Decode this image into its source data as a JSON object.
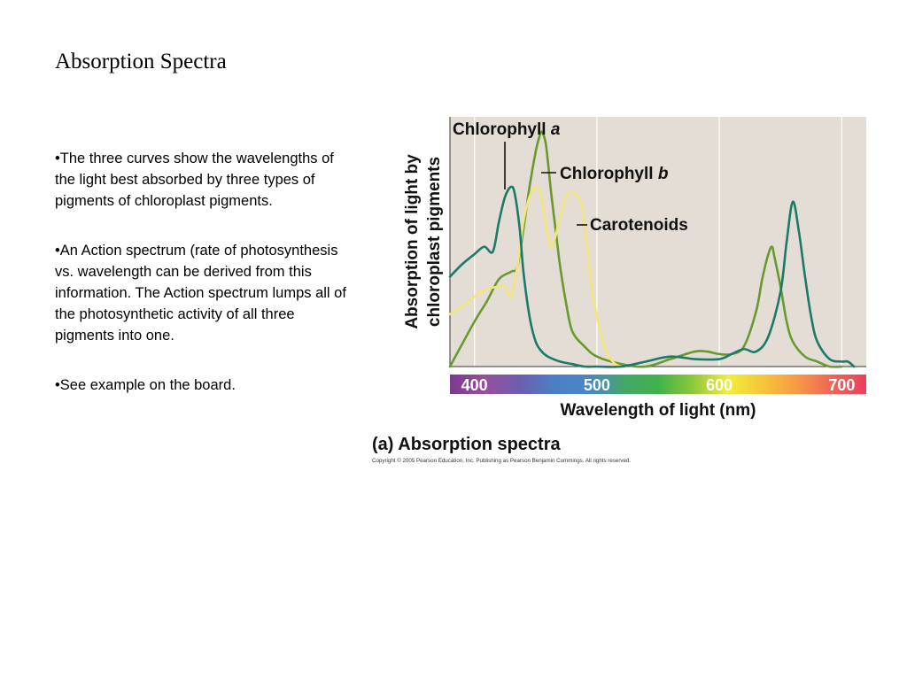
{
  "slide": {
    "title": "Absorption Spectra",
    "bullets": [
      "•The three curves show the wavelengths of the light best absorbed by three types of pigments of chloroplast pigments.",
      "•An Action spectrum  (rate of photosynthesis vs. wavelength can be derived from this information. The Action spectrum lumps all of the photosynthetic activity of all three pigments into one.",
      "•See example on the board."
    ]
  },
  "chart_data": {
    "type": "line",
    "title": "",
    "caption": "(a) Absorption spectra",
    "copyright": "Copyright © 2005 Pearson Education, Inc. Publishing as Pearson Benjamin Cummings. All rights reserved.",
    "xlabel": "Wavelength of light (nm)",
    "ylabel_lines": [
      "Absorption of light by",
      "chloroplast pigments"
    ],
    "xlim": [
      380,
      720
    ],
    "ylim": [
      0,
      1
    ],
    "x_ticks": [
      400,
      500,
      600,
      700
    ],
    "grid": true,
    "background": "#e3ddd6",
    "series": [
      {
        "name": "Chlorophyll a",
        "color": "#1b7a68",
        "label_weight_italic": "a",
        "label_base": "Chlorophyll ",
        "x": [
          380,
          390,
          400,
          408,
          415,
          420,
          425,
          430,
          433,
          437,
          440,
          445,
          450,
          455,
          460,
          470,
          480,
          490,
          500,
          520,
          540,
          560,
          580,
          600,
          610,
          620,
          630,
          640,
          650,
          655,
          660,
          665,
          670,
          675,
          680,
          690,
          700,
          705,
          710
        ],
        "y": [
          0.36,
          0.41,
          0.45,
          0.48,
          0.46,
          0.58,
          0.68,
          0.72,
          0.69,
          0.55,
          0.38,
          0.2,
          0.1,
          0.06,
          0.04,
          0.02,
          0.01,
          0.0,
          0.0,
          0.0,
          0.02,
          0.04,
          0.03,
          0.03,
          0.05,
          0.07,
          0.06,
          0.12,
          0.3,
          0.5,
          0.66,
          0.54,
          0.36,
          0.2,
          0.1,
          0.03,
          0.02,
          0.02,
          0.0
        ]
      },
      {
        "name": "Chlorophyll b",
        "color": "#6a9a2e",
        "label_weight_italic": "b",
        "label_base": "Chlorophyll ",
        "x": [
          380,
          400,
          410,
          420,
          430,
          435,
          440,
          445,
          450,
          453,
          455,
          458,
          460,
          463,
          467,
          470,
          475,
          480,
          490,
          500,
          520,
          540,
          560,
          580,
          590,
          600,
          610,
          620,
          630,
          635,
          640,
          643,
          645,
          650,
          655,
          660,
          670,
          680,
          690,
          700
        ],
        "y": [
          0.0,
          0.18,
          0.26,
          0.35,
          0.38,
          0.4,
          0.55,
          0.72,
          0.86,
          0.92,
          0.94,
          0.9,
          0.82,
          0.68,
          0.52,
          0.4,
          0.25,
          0.14,
          0.08,
          0.04,
          0.01,
          0.0,
          0.03,
          0.06,
          0.06,
          0.05,
          0.05,
          0.08,
          0.22,
          0.35,
          0.45,
          0.48,
          0.44,
          0.32,
          0.18,
          0.1,
          0.04,
          0.02,
          0.0,
          0.0
        ]
      },
      {
        "name": "Carotenoids",
        "color": "#f3e57a",
        "label_base": "Carotenoids",
        "x": [
          380,
          390,
          400,
          410,
          420,
          425,
          430,
          435,
          440,
          445,
          450,
          453,
          455,
          458,
          462,
          465,
          470,
          475,
          480,
          485,
          488,
          490,
          493,
          495,
          500,
          505,
          510,
          515,
          520
        ],
        "y": [
          0.21,
          0.24,
          0.28,
          0.31,
          0.32,
          0.32,
          0.28,
          0.4,
          0.58,
          0.68,
          0.72,
          0.71,
          0.67,
          0.58,
          0.48,
          0.5,
          0.6,
          0.68,
          0.7,
          0.68,
          0.64,
          0.56,
          0.44,
          0.34,
          0.2,
          0.1,
          0.04,
          0.01,
          0.0
        ]
      }
    ],
    "spectrum_bar_colors": [
      "#7a3b8c",
      "#9a4f9e",
      "#6c5eb0",
      "#4b7fc4",
      "#4a86c8",
      "#45a66a",
      "#3fb24a",
      "#8cc83c",
      "#f1ee3a",
      "#f7c53a",
      "#f59a45",
      "#ee6558",
      "#e9405c"
    ],
    "annotation_pointer_color": "#111111"
  }
}
